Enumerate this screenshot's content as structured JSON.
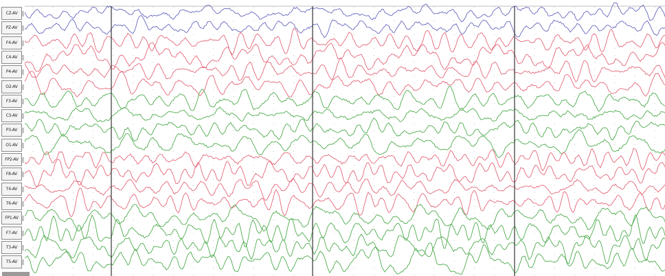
{
  "channels": [
    {
      "label": "CZ-AV",
      "color": "#5a5ab8"
    },
    {
      "label": "PZ-AV",
      "color": "#5a5ab8"
    },
    {
      "label": "F4-AV",
      "color": "#e05a6e"
    },
    {
      "label": "C4-AV",
      "color": "#e05a6e"
    },
    {
      "label": "P4-AV",
      "color": "#e05a6e"
    },
    {
      "label": "O2-AV",
      "color": "#e05a6e"
    },
    {
      "label": "F3-AV",
      "color": "#3fa43f"
    },
    {
      "label": "C3-AV",
      "color": "#3fa43f"
    },
    {
      "label": "P3-AV",
      "color": "#3fa43f"
    },
    {
      "label": "O1-AV",
      "color": "#3fa43f"
    },
    {
      "label": "FP2-AV",
      "color": "#e05a6e"
    },
    {
      "label": "F8-AV",
      "color": "#e05a6e"
    },
    {
      "label": "T4-AV",
      "color": "#e05a6e"
    },
    {
      "label": "T6-AV",
      "color": "#e05a6e"
    },
    {
      "label": "FP1-AV",
      "color": "#3fa43f"
    },
    {
      "label": "F7-AV",
      "color": "#3fa43f"
    },
    {
      "label": "T3-AV",
      "color": "#3fa43f"
    },
    {
      "label": "T5-AV",
      "color": "#3fa43f"
    }
  ],
  "colors": {
    "midline": "#5a5ab8",
    "right_hemisphere": "#e05a6e",
    "left_hemisphere": "#3fa43f",
    "page_divider": "#333333",
    "grid_dots": "#c4c4c4",
    "label_border": "#8a8a8a"
  }
}
